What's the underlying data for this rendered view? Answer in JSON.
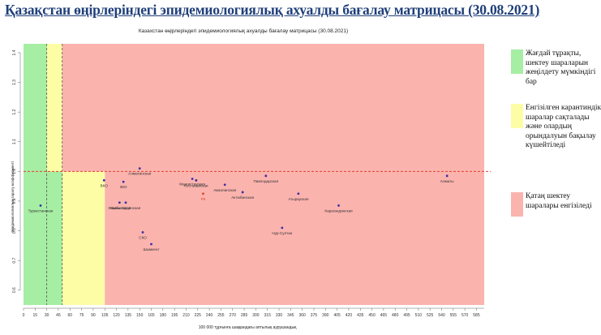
{
  "slide_title": "Қазақстан өңірлеріндегі эпидемиологиялық ахуалды бағалау матрицасы  (30.08.2021)",
  "legend": [
    {
      "text": "Жағдай тұрақты, шектеу шараларын жеңілдету мүмкіндігі бар",
      "color": "#a6eea4"
    },
    {
      "text": "Енгізілген карантиндік шаралар сақталады және олардың орындалуын бақылау күшейтіледі",
      "color": "#fdfda6"
    },
    {
      "text": "Қатаң шектеу шаралары енгізіледі",
      "color": "#fbb3ae"
    }
  ],
  "chart_data": {
    "type": "scatter",
    "title": "Казахстан өңірлеріндегі эпидемиологиялық ахуалды бағалау матрицасы (30.08.2021)",
    "xlabel": "100 000 тұрғынға шаққандағы аптылық аурушандық",
    "ylabel": "Эпидемиологиялық таралу коэффициенті",
    "xlim": [
      0,
      595
    ],
    "ylim": [
      0.55,
      1.43
    ],
    "xticks": [
      0,
      15,
      30,
      45,
      60,
      75,
      90,
      105,
      120,
      135,
      150,
      165,
      180,
      195,
      210,
      225,
      240,
      255,
      270,
      285,
      300,
      315,
      330,
      345,
      360,
      375,
      390,
      405,
      420,
      435,
      450,
      465,
      480,
      495,
      510,
      525,
      540,
      555,
      570,
      585
    ],
    "yticks": [
      0.6,
      0.7,
      0.8,
      0.9,
      1.0,
      1.1,
      1.2,
      1.3,
      1.4
    ],
    "zones": [
      {
        "x0": 0,
        "x1": 50,
        "y0": 0.55,
        "y1": 1.43,
        "color": "#a6eea4"
      },
      {
        "x0": 30,
        "x1": 50,
        "y0": 1.0,
        "y1": 1.43,
        "color": "#fdfda6"
      },
      {
        "x0": 50,
        "x1": 105,
        "y0": 0.55,
        "y1": 1.0,
        "color": "#fdfda6"
      },
      {
        "x0": 50,
        "x1": 595,
        "y0": 1.0,
        "y1": 1.43,
        "color": "#fbb3ae"
      },
      {
        "x0": 105,
        "x1": 595,
        "y0": 0.55,
        "y1": 1.0,
        "color": "#fbb3ae"
      }
    ],
    "reference_lines": {
      "x": [
        30,
        50
      ],
      "y": [
        1.0
      ]
    },
    "points": [
      {
        "label": "Туркестанская",
        "x": 22,
        "y": 0.885
      },
      {
        "label": "ВКО",
        "x": 104,
        "y": 0.97
      },
      {
        "label": "ЗКО",
        "x": 129,
        "y": 0.965
      },
      {
        "label": "Алматинская",
        "x": 150,
        "y": 1.01
      },
      {
        "label": "Жамбылская",
        "x": 124,
        "y": 0.895
      },
      {
        "label": "Кызылординская",
        "x": 132,
        "y": 0.895
      },
      {
        "label": "СКО",
        "x": 154,
        "y": 0.795
      },
      {
        "label": "Шымкент",
        "x": 165,
        "y": 0.755
      },
      {
        "label": "Мангистауская",
        "x": 218,
        "y": 0.975
      },
      {
        "label": "Костанайская",
        "x": 223,
        "y": 0.97
      },
      {
        "label": "Акмолинская",
        "x": 260,
        "y": 0.955
      },
      {
        "label": "РК",
        "x": 232,
        "y": 0.925
      },
      {
        "label": "Актюбинская",
        "x": 283,
        "y": 0.93
      },
      {
        "label": "Павлодарская",
        "x": 313,
        "y": 0.985
      },
      {
        "label": "Нур-Султан",
        "x": 334,
        "y": 0.81
      },
      {
        "label": "Атырауская",
        "x": 355,
        "y": 0.925
      },
      {
        "label": "Карагандинская",
        "x": 407,
        "y": 0.885
      },
      {
        "label": "Алматы",
        "x": 547,
        "y": 0.985
      }
    ]
  }
}
